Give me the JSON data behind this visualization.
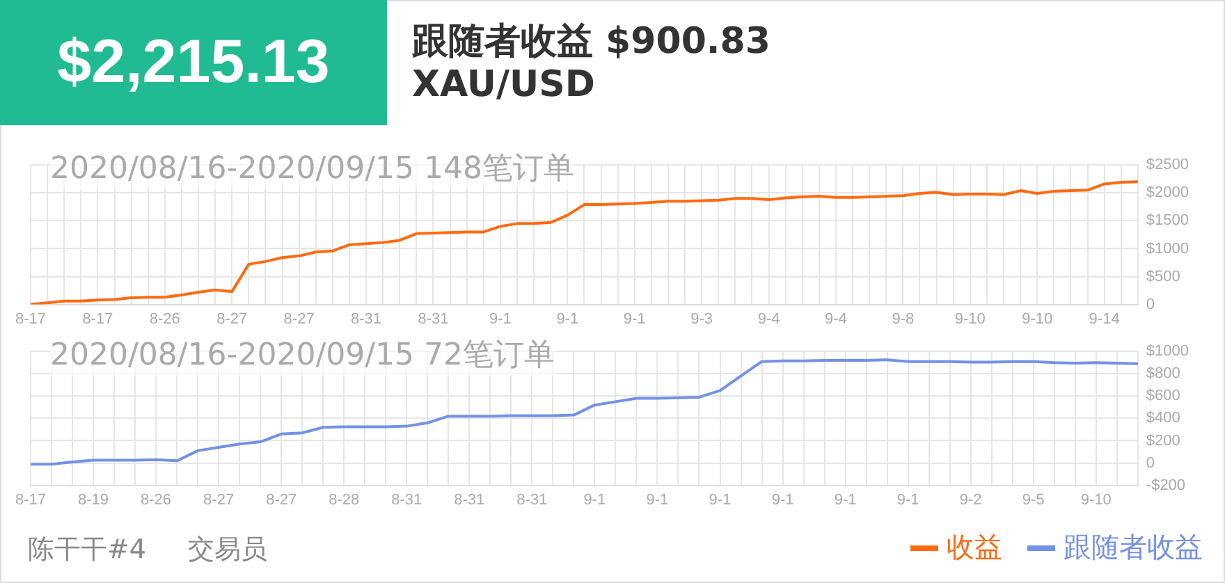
{
  "chart_data": [
    {
      "type": "line",
      "title": "2020/08/16-2020/09/15 148笔订单",
      "annotations": [
        "$2,215.13",
        "跟随者收益 $900.83",
        "XAU/USD"
      ],
      "categories": [
        "8-17",
        null,
        null,
        null,
        "8-17",
        null,
        null,
        null,
        "8-26",
        null,
        null,
        null,
        "8-27",
        null,
        null,
        null,
        "8-27",
        null,
        null,
        null,
        "8-31",
        null,
        null,
        null,
        "8-31",
        null,
        null,
        null,
        "9-1",
        null,
        null,
        null,
        "9-1",
        null,
        null,
        null,
        "9-1",
        null,
        null,
        null,
        "9-3",
        null,
        null,
        null,
        "9-4",
        null,
        null,
        null,
        "9-4",
        null,
        null,
        null,
        "9-8",
        null,
        null,
        null,
        "9-10",
        null,
        null,
        null,
        "9-10",
        null,
        null,
        null,
        "9-14",
        null,
        null
      ],
      "series": [
        {
          "name": "收益",
          "color": "#ff6a13",
          "values": [
            0,
            30,
            60,
            60,
            80,
            90,
            120,
            130,
            130,
            170,
            220,
            260,
            230,
            720,
            770,
            840,
            870,
            940,
            960,
            1070,
            1090,
            1110,
            1150,
            1270,
            1280,
            1290,
            1300,
            1300,
            1400,
            1450,
            1450,
            1470,
            1600,
            1790,
            1790,
            1800,
            1810,
            1830,
            1850,
            1850,
            1860,
            1870,
            1900,
            1900,
            1880,
            1910,
            1930,
            1940,
            1920,
            1920,
            1930,
            1940,
            1950,
            1990,
            2010,
            1970,
            1980,
            1980,
            1970,
            2040,
            1990,
            2030,
            2040,
            2050,
            2160,
            2190,
            2200
          ]
        }
      ],
      "ylim": [
        0,
        2500
      ],
      "yticks": [
        0,
        {
          "value": 500,
          "label": "$500"
        },
        {
          "value": 1000,
          "label": "$1000"
        },
        {
          "value": 1500,
          "label": "$1500"
        },
        {
          "value": 2000,
          "label": "$2000"
        },
        {
          "value": 2500,
          "label": "$2500"
        }
      ],
      "grid": true,
      "legend": "bottom right",
      "marker": "none",
      "line_style": "solid"
    },
    {
      "type": "line",
      "title": "2020/08/16-2020/09/15 72笔订单",
      "annotations": [
        "陈干干#4",
        "交易员"
      ],
      "categories": [
        "8-17",
        null,
        null,
        "8-19",
        null,
        null,
        "8-26",
        null,
        null,
        "8-27",
        null,
        null,
        "8-27",
        null,
        null,
        "8-28",
        null,
        null,
        "8-31",
        null,
        null,
        "8-31",
        null,
        null,
        "8-31",
        null,
        null,
        "9-1",
        null,
        null,
        "9-1",
        null,
        null,
        "9-1",
        null,
        null,
        "9-1",
        null,
        null,
        "9-1",
        null,
        null,
        "9-1",
        null,
        null,
        "9-2",
        null,
        null,
        "9-5",
        null,
        null,
        "9-10",
        null,
        null
      ],
      "series": [
        {
          "name": "跟随者收益",
          "color": "#7391e6",
          "values": [
            -10,
            -10,
            10,
            25,
            25,
            25,
            30,
            20,
            110,
            140,
            170,
            190,
            260,
            270,
            320,
            325,
            325,
            325,
            330,
            360,
            420,
            420,
            420,
            425,
            425,
            425,
            430,
            520,
            550,
            580,
            580,
            585,
            590,
            650,
            780,
            910,
            915,
            915,
            920,
            920,
            920,
            925,
            910,
            910,
            910,
            905,
            905,
            910,
            910,
            900,
            895,
            900,
            895,
            890
          ]
        }
      ],
      "ylim": [
        -200,
        1000
      ],
      "yticks": [
        {
          "value": -200,
          "label": "-$200"
        },
        0,
        {
          "value": 200,
          "label": "$200"
        },
        {
          "value": 400,
          "label": "$400"
        },
        {
          "value": 600,
          "label": "$600"
        },
        {
          "value": 800,
          "label": "$800"
        },
        {
          "value": 1000,
          "label": "$1000"
        }
      ],
      "grid": true,
      "legend": "bottom right",
      "marker": "none",
      "line_style": "solid"
    }
  ]
}
